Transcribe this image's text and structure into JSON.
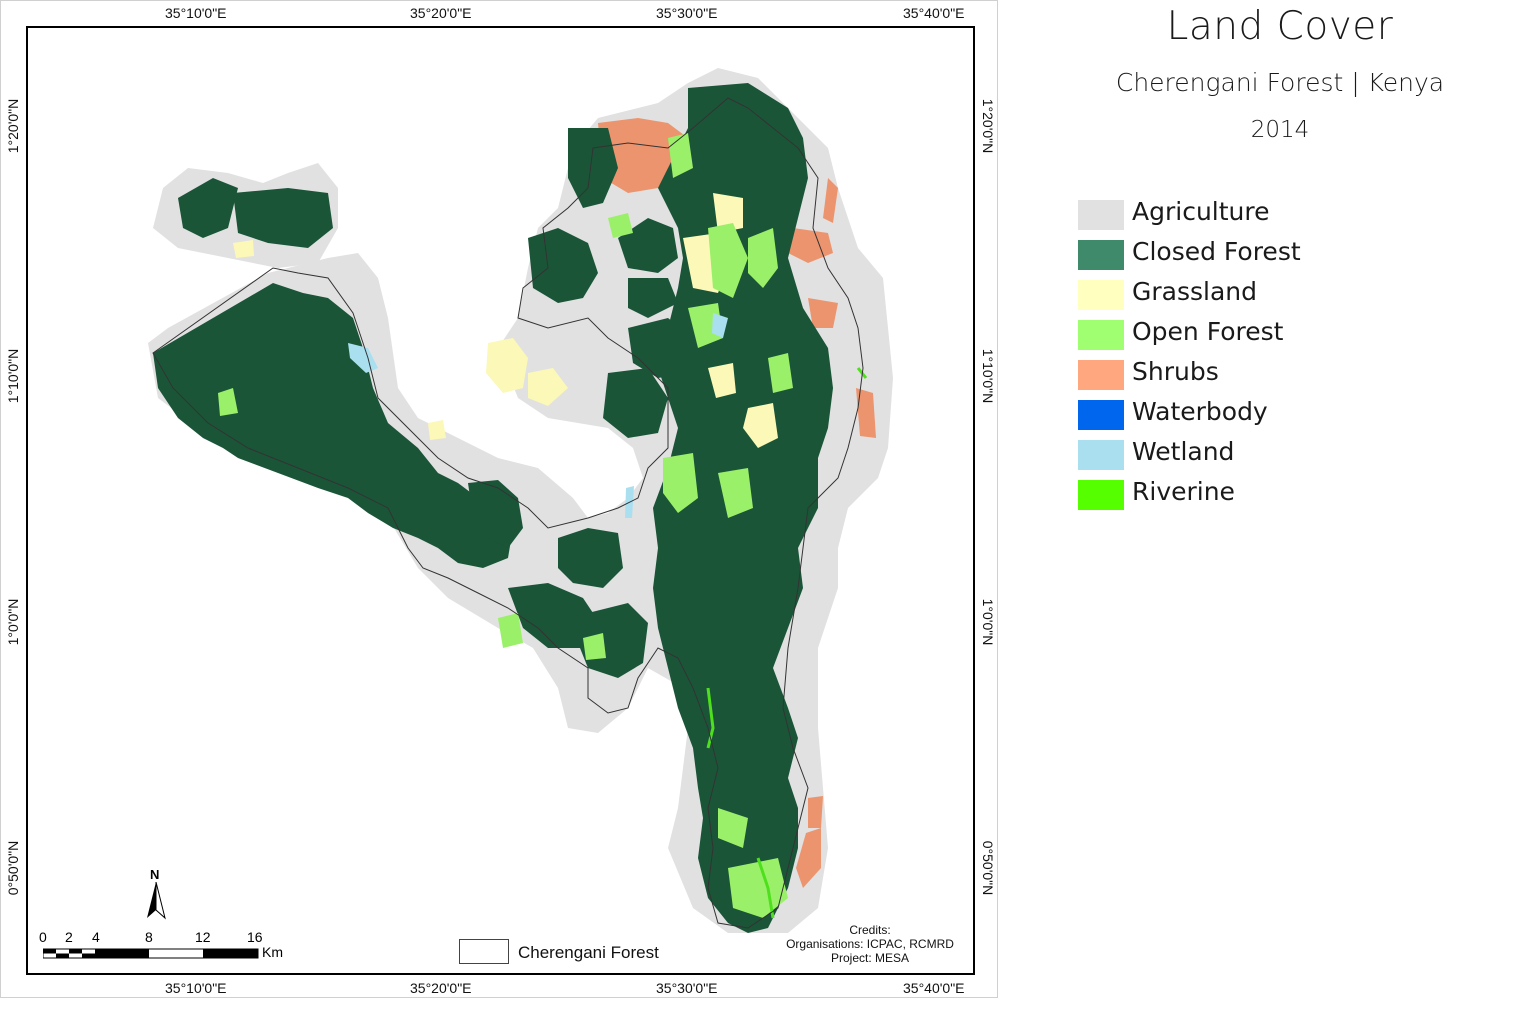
{
  "map": {
    "title": "Land Cover",
    "subtitle": "Cherengani Forest | Kenya",
    "year": "2014",
    "graticule": {
      "longitudes": [
        "35°10'0\"E",
        "35°20'0\"E",
        "35°30'0\"E",
        "35°40'0\"E"
      ],
      "latitudes": [
        "1°20'0\"N",
        "1°10'0\"N",
        "1°0'0\"N",
        "0°50'0\"N"
      ]
    },
    "legend": [
      {
        "label": "Agriculture",
        "color": "#e1e1e1"
      },
      {
        "label": "Closed Forest",
        "color": "#3f8a6a"
      },
      {
        "label": "Grassland",
        "color": "#ffffc0"
      },
      {
        "label": "Open Forest",
        "color": "#a0ff70"
      },
      {
        "label": "Shrubs",
        "color": "#ffa77f"
      },
      {
        "label": "Waterbody",
        "color": "#0066ee"
      },
      {
        "label": "Wetland",
        "color": "#aadff0"
      },
      {
        "label": "Riverine",
        "color": "#55ff00"
      }
    ],
    "scalebar": {
      "ticks": [
        "0",
        "2",
        "4",
        "8",
        "12",
        "16"
      ],
      "unit": "Km"
    },
    "boundary_legend": "Cherengani Forest",
    "north_arrow": "N",
    "credits": {
      "heading": "Credits:",
      "organisations": "Organisations: ICPAC, RCMRD",
      "project": "Project: MESA"
    },
    "colors": {
      "closed_forest_map": "#1b5538",
      "agriculture_map": "#e1e1e1",
      "shrubs_map": "#ec946e",
      "grassland_map": "#fcf8b8",
      "open_forest_map": "#9bf06a",
      "riverine_map": "#4ee01c",
      "wetland_map": "#aadff0"
    }
  }
}
